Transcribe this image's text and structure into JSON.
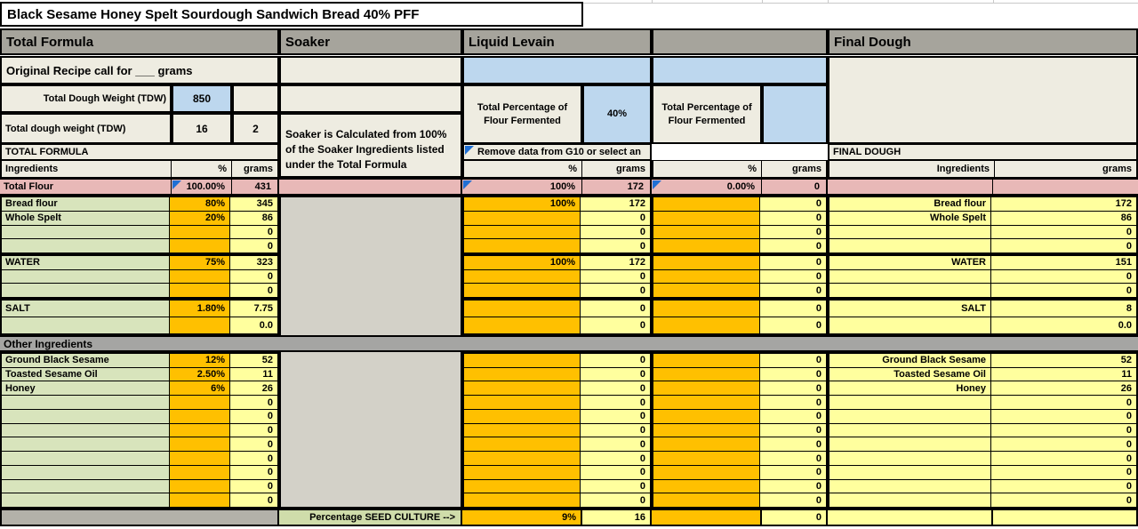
{
  "title": "Black Sesame Honey Spelt Sourdough Sandwich Bread 40% PFF",
  "colors": {
    "beige": "#eeece1",
    "header_gray": "#a6a49c",
    "body_gray": "#d3d1c8",
    "band_gray": "#a5a5a3",
    "dark_gray_cell": "#b3b1a9",
    "pink": "#e8b8b7",
    "green": "#d8e4bc",
    "seed_green": "#cfdcaa",
    "orange": "#ffc000",
    "yellow": "#ffff9e",
    "blue": "#bdd7ee",
    "flag_blue": "#1f6fd4"
  },
  "icons": {
    "comment_flag": "blue-triangle-comment-marker"
  },
  "sections": {
    "total_formula": {
      "header": "Total Formula",
      "recipe_note": "Original Recipe call for ___ grams",
      "tdw_label_1": "Total Dough Weight (TDW)",
      "tdw_value": "850",
      "tdw_label_2": "Total dough weight (TDW)",
      "tdw_value_2a": "16",
      "tdw_value_2b": "2",
      "subheader": "TOTAL FORMULA",
      "col_ingredients": "Ingredients",
      "col_pct": "%",
      "col_grams": "grams",
      "other_ingredients_header": "Other Ingredients"
    },
    "soaker": {
      "header": "Soaker",
      "note": "Soaker is Calculated from 100% of the Soaker Ingredients listed under the Total Formula"
    },
    "liquid_levain": {
      "header": "Liquid Levain",
      "pff_label": "Total Percentage of Flour Fermented",
      "pff_value": "40%",
      "comment": "Remove data from G10 or select an",
      "col_pct": "%",
      "col_grams": "grams"
    },
    "section2": {
      "header": "",
      "pff_label": "Total Percentage of Flour Fermented",
      "pff_value": "",
      "comment": "",
      "col_pct": "%",
      "col_grams": "grams"
    },
    "final_dough": {
      "header": "Final Dough",
      "subheader": "FINAL DOUGH",
      "col_ingredients": "Ingredients",
      "col_grams": "grams"
    }
  },
  "total_flour_row": {
    "tf_name": "Total Flour",
    "tf_pct": "100.00%",
    "tf_grams": "431",
    "ll_pct": "100%",
    "ll_grams": "172",
    "s2_pct": "0.00%",
    "s2_grams": "0",
    "fd_name": "",
    "fd_grams": ""
  },
  "rows_flour": [
    {
      "tf": [
        "Bread flour",
        "80%",
        "345"
      ],
      "ll": [
        "100%",
        "172"
      ],
      "s2": [
        "",
        "0"
      ],
      "fd": [
        "Bread flour",
        "172"
      ]
    },
    {
      "tf": [
        "Whole Spelt",
        "20%",
        "86"
      ],
      "ll": [
        "",
        "0"
      ],
      "s2": [
        "",
        "0"
      ],
      "fd": [
        "Whole Spelt",
        "86"
      ]
    },
    {
      "tf": [
        "",
        "",
        "0"
      ],
      "ll": [
        "",
        "0"
      ],
      "s2": [
        "",
        "0"
      ],
      "fd": [
        "",
        "0"
      ]
    },
    {
      "tf": [
        "",
        "",
        "0"
      ],
      "ll": [
        "",
        "0"
      ],
      "s2": [
        "",
        "0"
      ],
      "fd": [
        "",
        "0"
      ]
    }
  ],
  "rows_water": [
    {
      "tf": [
        "WATER",
        "75%",
        "323"
      ],
      "ll": [
        "100%",
        "172"
      ],
      "s2": [
        "",
        "0"
      ],
      "fd": [
        "WATER",
        "151"
      ]
    },
    {
      "tf": [
        "",
        "",
        "0"
      ],
      "ll": [
        "",
        "0"
      ],
      "s2": [
        "",
        "0"
      ],
      "fd": [
        "",
        "0"
      ]
    },
    {
      "tf": [
        "",
        "",
        "0"
      ],
      "ll": [
        "",
        "0"
      ],
      "s2": [
        "",
        "0"
      ],
      "fd": [
        "",
        "0"
      ]
    }
  ],
  "rows_salt": [
    {
      "tf": [
        "SALT",
        "1.80%",
        "7.75"
      ],
      "ll": [
        "",
        "0"
      ],
      "s2": [
        "",
        "0"
      ],
      "fd": [
        "SALT",
        "8"
      ]
    },
    {
      "tf": [
        "",
        "",
        "0.0"
      ],
      "ll": [
        "",
        "0"
      ],
      "s2": [
        "",
        "0"
      ],
      "fd": [
        "",
        "0.0"
      ]
    }
  ],
  "rows_other": [
    {
      "tf": [
        "Ground Black Sesame",
        "12%",
        "52"
      ],
      "ll": [
        "",
        "0"
      ],
      "s2": [
        "",
        "0"
      ],
      "fd": [
        "Ground Black Sesame",
        "52"
      ]
    },
    {
      "tf": [
        "Toasted Sesame Oil",
        "2.50%",
        "11"
      ],
      "ll": [
        "",
        "0"
      ],
      "s2": [
        "",
        "0"
      ],
      "fd": [
        "Toasted Sesame Oil",
        "11"
      ]
    },
    {
      "tf": [
        "Honey",
        "6%",
        "26"
      ],
      "ll": [
        "",
        "0"
      ],
      "s2": [
        "",
        "0"
      ],
      "fd": [
        "Honey",
        "26"
      ]
    },
    {
      "tf": [
        "",
        "",
        "0"
      ],
      "ll": [
        "",
        "0"
      ],
      "s2": [
        "",
        "0"
      ],
      "fd": [
        "",
        "0"
      ]
    },
    {
      "tf": [
        "",
        "",
        "0"
      ],
      "ll": [
        "",
        "0"
      ],
      "s2": [
        "",
        "0"
      ],
      "fd": [
        "",
        "0"
      ]
    },
    {
      "tf": [
        "",
        "",
        "0"
      ],
      "ll": [
        "",
        "0"
      ],
      "s2": [
        "",
        "0"
      ],
      "fd": [
        "",
        "0"
      ]
    },
    {
      "tf": [
        "",
        "",
        "0"
      ],
      "ll": [
        "",
        "0"
      ],
      "s2": [
        "",
        "0"
      ],
      "fd": [
        "",
        "0"
      ]
    },
    {
      "tf": [
        "",
        "",
        "0"
      ],
      "ll": [
        "",
        "0"
      ],
      "s2": [
        "",
        "0"
      ],
      "fd": [
        "",
        "0"
      ]
    },
    {
      "tf": [
        "",
        "",
        "0"
      ],
      "ll": [
        "",
        "0"
      ],
      "s2": [
        "",
        "0"
      ],
      "fd": [
        "",
        "0"
      ]
    },
    {
      "tf": [
        "",
        "",
        "0"
      ],
      "ll": [
        "",
        "0"
      ],
      "s2": [
        "",
        "0"
      ],
      "fd": [
        "",
        "0"
      ]
    },
    {
      "tf": [
        "",
        "",
        "0"
      ],
      "ll": [
        "",
        "0"
      ],
      "s2": [
        "",
        "0"
      ],
      "fd": [
        "",
        "0"
      ]
    }
  ],
  "seed_row": {
    "label": "Percentage SEED CULTURE  -->",
    "ll_pct": "9%",
    "ll_grams": "16",
    "s2_pct": "",
    "s2_grams": "0",
    "fd_name": "",
    "fd_grams": ""
  }
}
